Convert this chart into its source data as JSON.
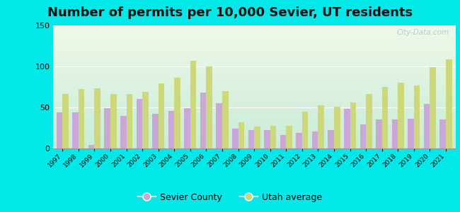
{
  "title": "Number of permits per 10,000 Sevier, UT residents",
  "years": [
    1997,
    1998,
    1999,
    2000,
    2001,
    2002,
    2003,
    2004,
    2005,
    2006,
    2007,
    2008,
    2009,
    2010,
    2011,
    2012,
    2013,
    2014,
    2015,
    2016,
    2017,
    2018,
    2019,
    2020,
    2021
  ],
  "sevier_county": [
    44,
    44,
    4,
    49,
    40,
    60,
    42,
    46,
    49,
    68,
    55,
    24,
    22,
    22,
    16,
    19,
    21,
    22,
    48,
    29,
    35,
    35,
    36,
    54,
    35
  ],
  "utah_avg": [
    66,
    72,
    73,
    66,
    66,
    69,
    79,
    86,
    107,
    100,
    70,
    32,
    27,
    28,
    28,
    45,
    53,
    51,
    56,
    66,
    75,
    80,
    77,
    99,
    109
  ],
  "sevier_color": "#c9a8d8",
  "utah_color": "#ccd87a",
  "bg_color_top": "#f0f8e8",
  "bg_color_bottom": "#c8ecd8",
  "outer_background": "#00e8e8",
  "ylim": [
    0,
    150
  ],
  "yticks": [
    0,
    50,
    100,
    150
  ],
  "title_fontsize": 13,
  "legend_labels": [
    "Sevier County",
    "Utah average"
  ],
  "watermark": "City-Data.com"
}
